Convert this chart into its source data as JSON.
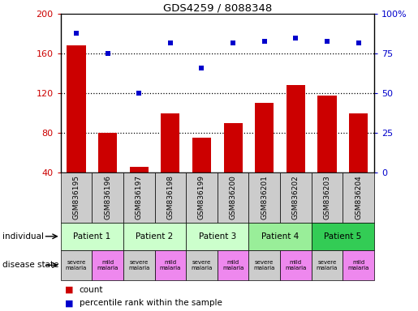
{
  "title": "GDS4259 / 8088348",
  "samples": [
    "GSM836195",
    "GSM836196",
    "GSM836197",
    "GSM836198",
    "GSM836199",
    "GSM836200",
    "GSM836201",
    "GSM836202",
    "GSM836203",
    "GSM836204"
  ],
  "bar_values": [
    168,
    80,
    46,
    100,
    75,
    90,
    110,
    128,
    118,
    100
  ],
  "scatter_values": [
    88,
    75,
    50,
    82,
    66,
    82,
    83,
    85,
    83,
    82
  ],
  "ylim_left": [
    40,
    200
  ],
  "ylim_right": [
    0,
    100
  ],
  "yticks_left": [
    40,
    80,
    120,
    160,
    200
  ],
  "yticks_right": [
    0,
    25,
    50,
    75,
    100
  ],
  "ytick_labels_left": [
    "40",
    "80",
    "120",
    "160",
    "200"
  ],
  "ytick_labels_right": [
    "0",
    "25",
    "50",
    "75",
    "100%"
  ],
  "patients": [
    "Patient 1",
    "Patient 2",
    "Patient 3",
    "Patient 4",
    "Patient 5"
  ],
  "patient_colors": [
    "#ccffcc",
    "#ccffcc",
    "#ccffcc",
    "#99ee99",
    "#33cc55"
  ],
  "disease_labels": [
    "severe\nmalaria",
    "mild\nmalaria",
    "severe\nmalaria",
    "mild\nmalaria",
    "severe\nmalaria",
    "mild\nmalaria",
    "severe\nmalaria",
    "mild\nmalaria",
    "severe\nmalaria",
    "mild\nmalaria"
  ],
  "disease_colors": [
    "#cccccc",
    "#ee88ee",
    "#cccccc",
    "#ee88ee",
    "#cccccc",
    "#ee88ee",
    "#cccccc",
    "#ee88ee",
    "#cccccc",
    "#ee88ee"
  ],
  "bar_color": "#cc0000",
  "scatter_color": "#0000cc",
  "legend_count_label": "count",
  "legend_percentile_label": "percentile rank within the sample",
  "individual_label": "individual",
  "disease_state_label": "disease state",
  "sample_bg_color": "#cccccc"
}
